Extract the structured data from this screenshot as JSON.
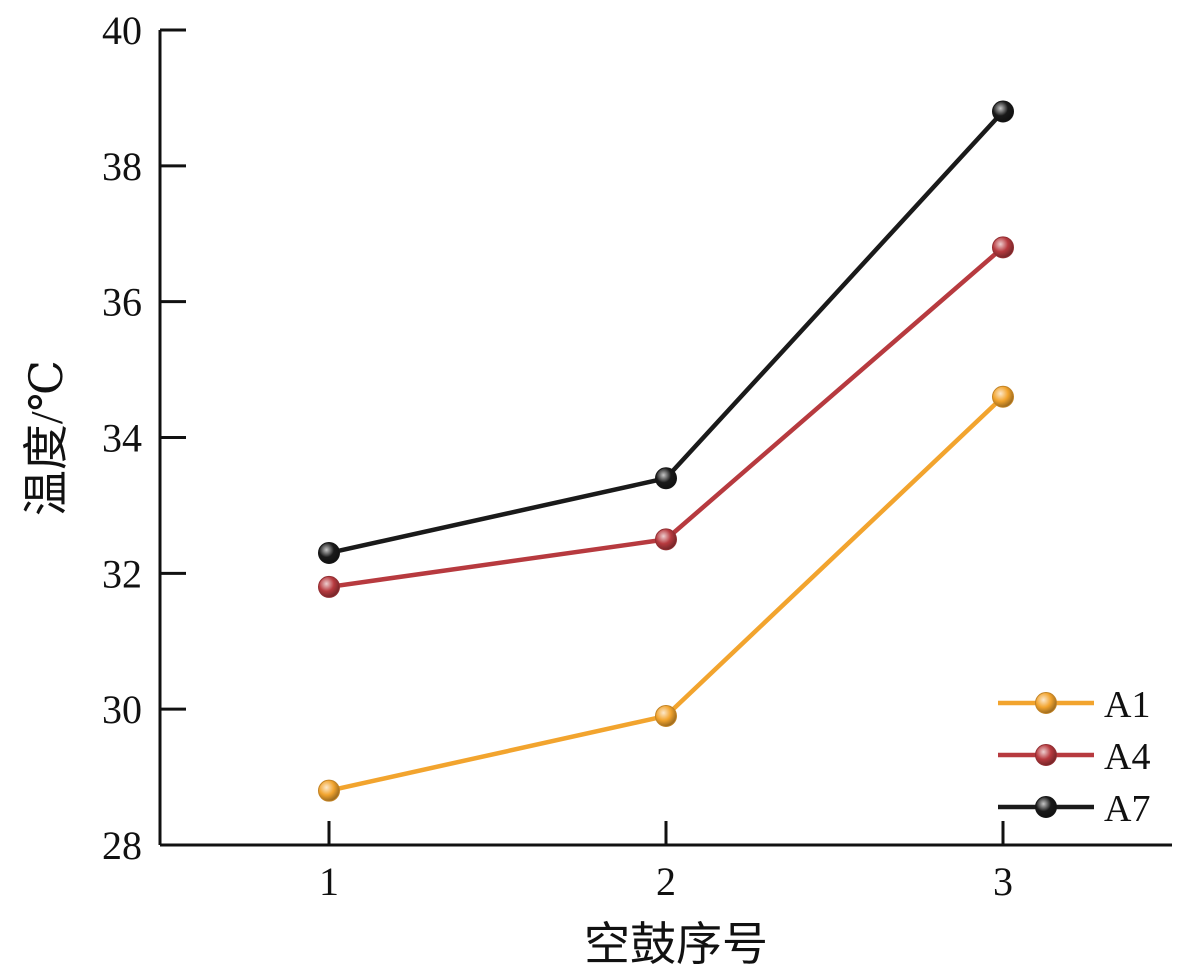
{
  "chart_data": {
    "type": "line",
    "title": "",
    "xlabel": "空鼓序号",
    "ylabel": "温度/℃",
    "x": [
      1,
      2,
      3
    ],
    "x_tick_labels": [
      "1",
      "2",
      "3"
    ],
    "xlim": [
      0.5,
      3.5
    ],
    "ylim": [
      28,
      40
    ],
    "y_ticks": [
      28,
      30,
      32,
      34,
      36,
      38,
      40
    ],
    "y_tick_labels": [
      "28",
      "30",
      "32",
      "34",
      "36",
      "38",
      "40"
    ],
    "grid": false,
    "legend_position": "bottom-right",
    "series": [
      {
        "name": "A1",
        "color": "#F2A42E",
        "values": [
          28.8,
          29.9,
          34.6
        ]
      },
      {
        "name": "A4",
        "color": "#B73A3F",
        "values": [
          31.8,
          32.5,
          36.8
        ]
      },
      {
        "name": "A7",
        "color": "#1A1A1A",
        "values": [
          32.3,
          33.4,
          38.8
        ]
      }
    ]
  }
}
